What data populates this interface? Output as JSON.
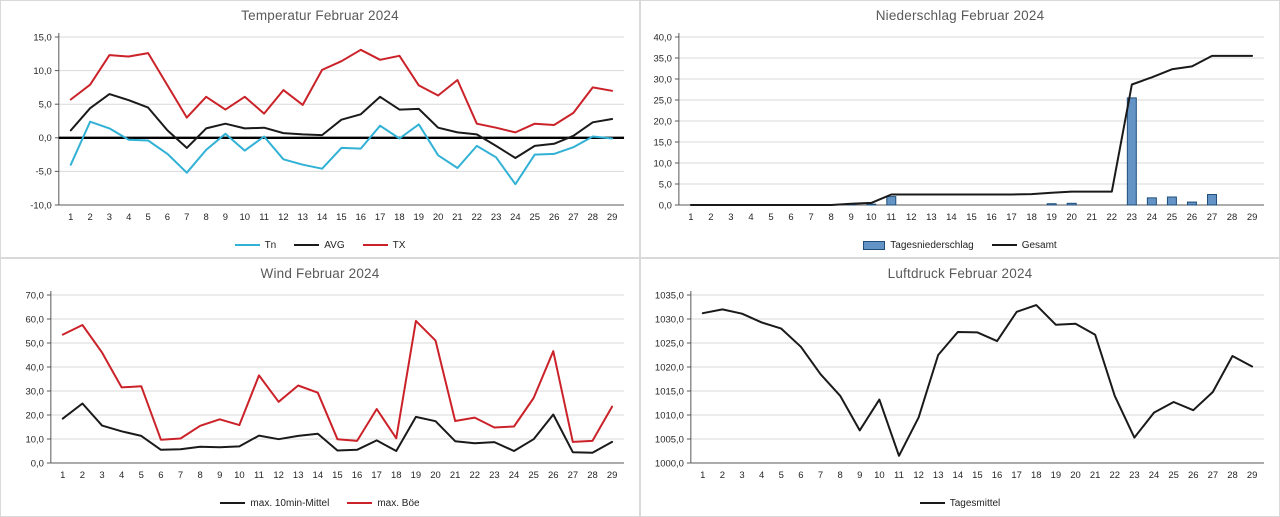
{
  "colors": {
    "tn_cyan": "#31b1d5",
    "tx_red": "#cb2229",
    "series_black": "#1a1a1a",
    "bar_fill": "#6494c6",
    "bar_border": "#1f4e79",
    "gridline": "#d9d9d9",
    "axis": "#595959",
    "title_gray": "#595959",
    "tick_text": "#262626"
  },
  "chart_data": [
    {
      "type": "line",
      "title": "Temperatur Februar 2024",
      "x": [
        1,
        2,
        3,
        4,
        5,
        6,
        7,
        8,
        9,
        10,
        11,
        12,
        13,
        14,
        15,
        16,
        17,
        18,
        19,
        20,
        21,
        22,
        23,
        24,
        25,
        26,
        27,
        28,
        29
      ],
      "ylim": [
        -10,
        15
      ],
      "ytick_step": 5,
      "grid": true,
      "zero_line": true,
      "legend_position": "bottom",
      "series": [
        {
          "name": "Tn",
          "color": "#31b1d5",
          "values": [
            -4.0,
            2.4,
            1.4,
            -0.3,
            -0.4,
            -2.4,
            -5.2,
            -1.8,
            0.6,
            -1.9,
            0.2,
            -3.2,
            -4.0,
            -4.6,
            -1.5,
            -1.6,
            1.8,
            -0.1,
            2.0,
            -2.6,
            -4.5,
            -1.2,
            -2.9,
            -6.9,
            -2.5,
            -2.4,
            -1.4,
            0.2,
            -0.1
          ]
        },
        {
          "name": "AVG",
          "color": "#1a1a1a",
          "values": [
            1.1,
            4.4,
            6.5,
            5.6,
            4.5,
            1.1,
            -1.5,
            1.4,
            2.1,
            1.4,
            1.5,
            0.7,
            0.5,
            0.4,
            2.7,
            3.5,
            6.1,
            4.2,
            4.3,
            1.5,
            0.8,
            0.5,
            -1.2,
            -3.0,
            -1.2,
            -0.9,
            0.3,
            2.3,
            2.8
          ]
        },
        {
          "name": "TX",
          "color": "#cb2229",
          "values": [
            5.7,
            7.9,
            12.3,
            12.1,
            12.6,
            7.8,
            3.0,
            6.1,
            4.2,
            6.1,
            3.6,
            7.1,
            4.9,
            10.1,
            11.4,
            13.1,
            11.6,
            12.2,
            7.8,
            6.3,
            8.6,
            2.1,
            1.5,
            0.8,
            2.1,
            1.9,
            3.7,
            7.5,
            7.0
          ]
        }
      ]
    },
    {
      "type": "bar+line",
      "title": "Niederschlag Februar 2024",
      "x": [
        1,
        2,
        3,
        4,
        5,
        6,
        7,
        8,
        9,
        10,
        11,
        12,
        13,
        14,
        15,
        16,
        17,
        18,
        19,
        20,
        21,
        22,
        23,
        24,
        25,
        26,
        27,
        28,
        29
      ],
      "ylim": [
        0,
        40
      ],
      "ytick_step": 5,
      "grid": true,
      "zero_line": false,
      "legend_position": "bottom",
      "bars": {
        "name": "Tagesniederschlag",
        "fill": "#6494c6",
        "border": "#1f4e79",
        "values": [
          0,
          0,
          0,
          0,
          0,
          0,
          0,
          0,
          0.3,
          0.2,
          2.0,
          0,
          0,
          0,
          0,
          0,
          0,
          0,
          0.3,
          0.4,
          0,
          0,
          25.5,
          1.7,
          1.9,
          0.7,
          2.5,
          0,
          0
        ]
      },
      "series": [
        {
          "name": "Gesamt",
          "color": "#1a1a1a",
          "values": [
            0,
            0,
            0,
            0,
            0,
            0,
            0,
            0,
            0.3,
            0.5,
            2.5,
            2.5,
            2.5,
            2.5,
            2.5,
            2.5,
            2.5,
            2.6,
            2.9,
            3.2,
            3.2,
            3.2,
            28.7,
            30.4,
            32.3,
            33.0,
            35.5,
            35.5,
            35.5
          ]
        }
      ]
    },
    {
      "type": "line",
      "title": "Wind Februar 2024",
      "x": [
        1,
        2,
        3,
        4,
        5,
        6,
        7,
        8,
        9,
        10,
        11,
        12,
        13,
        14,
        15,
        16,
        17,
        18,
        19,
        20,
        21,
        22,
        23,
        24,
        25,
        26,
        27,
        28,
        29
      ],
      "ylim": [
        0,
        70
      ],
      "ytick_step": 10,
      "grid": true,
      "zero_line": false,
      "legend_position": "bottom",
      "series": [
        {
          "name": "max. 10min-Mittel",
          "color": "#1a1a1a",
          "values": [
            18.5,
            24.8,
            15.6,
            13.2,
            11.3,
            5.5,
            5.7,
            6.8,
            6.6,
            6.9,
            11.4,
            9.9,
            11.3,
            12.2,
            5.2,
            5.5,
            9.4,
            5.0,
            19.2,
            17.4,
            9.1,
            8.2,
            8.7,
            5.0,
            9.9,
            20.2,
            4.5,
            4.3,
            8.8
          ]
        },
        {
          "name": "max. Böe",
          "color": "#cb2229",
          "values": [
            53.5,
            57.5,
            46.0,
            31.5,
            32.0,
            9.7,
            10.2,
            15.5,
            18.2,
            15.8,
            36.5,
            25.5,
            32.3,
            29.3,
            9.9,
            9.2,
            22.5,
            10.3,
            59.2,
            51.0,
            17.5,
            18.9,
            14.8,
            15.2,
            27.1,
            46.6,
            8.8,
            9.2,
            23.5
          ]
        }
      ]
    },
    {
      "type": "line",
      "title": "Luftdruck Februar 2024",
      "x": [
        1,
        2,
        3,
        4,
        5,
        6,
        7,
        8,
        9,
        10,
        11,
        12,
        13,
        14,
        15,
        16,
        17,
        18,
        19,
        20,
        21,
        22,
        23,
        24,
        25,
        26,
        27,
        28,
        29
      ],
      "ylim": [
        1000,
        1035
      ],
      "ytick_step": 5,
      "grid": true,
      "zero_line": false,
      "legend_position": "bottom",
      "series": [
        {
          "name": "Tagesmittel",
          "color": "#1a1a1a",
          "values": [
            1031.2,
            1032.0,
            1031.1,
            1029.3,
            1028.0,
            1024.2,
            1018.5,
            1014.0,
            1006.8,
            1013.2,
            1001.5,
            1009.5,
            1022.5,
            1027.3,
            1027.2,
            1025.4,
            1031.5,
            1032.9,
            1028.8,
            1029.0,
            1026.7,
            1014.0,
            1005.3,
            1010.5,
            1012.7,
            1011.0,
            1014.8,
            1022.3,
            1020.1
          ]
        }
      ]
    }
  ]
}
